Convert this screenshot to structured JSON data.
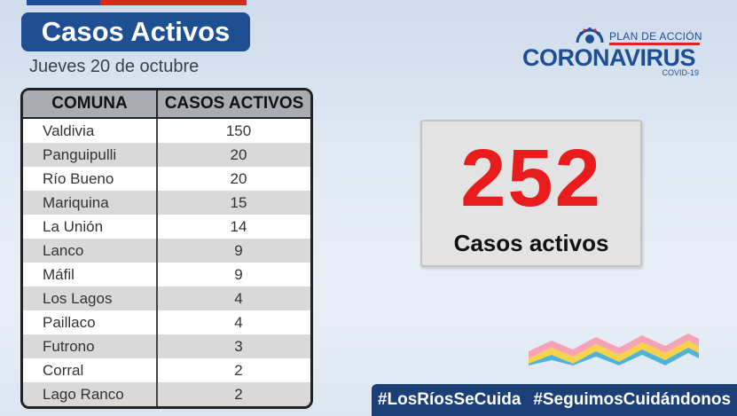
{
  "title": "Casos Activos",
  "date": "Jueves 20 de octubre",
  "table": {
    "headers": [
      "COMUNA",
      "CASOS ACTIVOS"
    ],
    "rows": [
      {
        "comuna": "Valdivia",
        "casos": "150"
      },
      {
        "comuna": "Panguipulli",
        "casos": "20"
      },
      {
        "comuna": "Río Bueno",
        "casos": "20"
      },
      {
        "comuna": "Mariquina",
        "casos": "15"
      },
      {
        "comuna": "La Unión",
        "casos": "14"
      },
      {
        "comuna": "Lanco",
        "casos": "9"
      },
      {
        "comuna": "Máfil",
        "casos": "9"
      },
      {
        "comuna": "Los Lagos",
        "casos": "4"
      },
      {
        "comuna": "Paillaco",
        "casos": "4"
      },
      {
        "comuna": "Futrono",
        "casos": "3"
      },
      {
        "comuna": "Corral",
        "casos": "2"
      },
      {
        "comuna": "Lago Ranco",
        "casos": "2"
      }
    ]
  },
  "logo": {
    "plan": "PLAN DE ACCIÓN",
    "main": "CORONAVIRUS",
    "sub": "COVID-19"
  },
  "summary": {
    "count": "252",
    "label": "Casos activos"
  },
  "hashtags": [
    "#LosRíosSeCuida",
    "#SeguimosCuidándonos"
  ],
  "colors": {
    "brand_blue": "#1d4f92",
    "accent_red": "#e81c1c",
    "hashtag_bg": "#1d3f78"
  },
  "icons": [
    "coronavirus-logo-icon",
    "wave-decoration-icon"
  ]
}
